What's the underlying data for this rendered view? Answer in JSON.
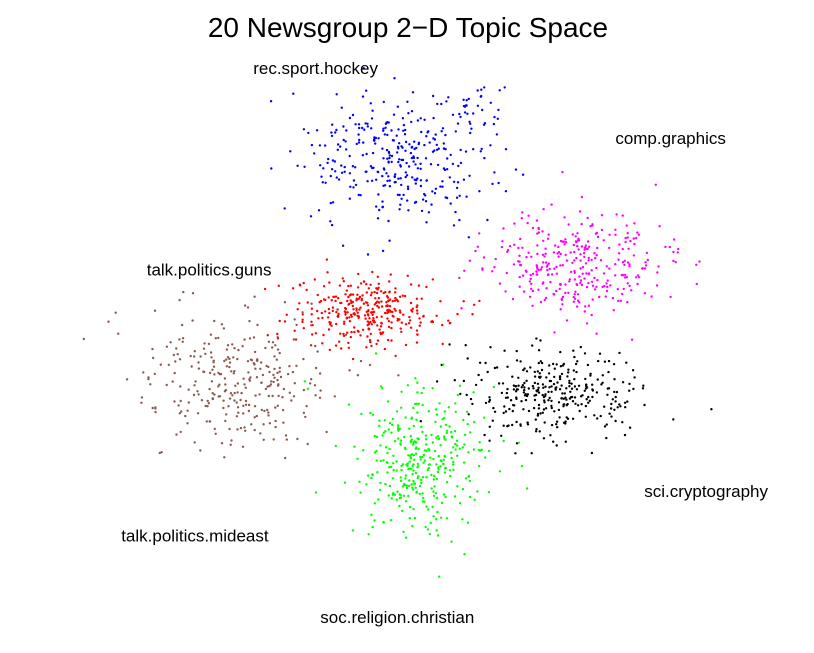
{
  "chart_data": {
    "type": "scatter",
    "title": "20 Newsgroup 2−D Topic Space",
    "xlabel": "",
    "ylabel": "",
    "axes_visible": false,
    "grid": false,
    "legend": "none",
    "point_counts_note": "",
    "series": [
      {
        "name": "rec.sport.hockey",
        "color": "#0000ff",
        "label_anchor": [
          -0.28,
          0.95
        ],
        "clusters": [
          {
            "center": [
              -0.05,
              0.64
            ],
            "spread": [
              0.22,
              0.19
            ],
            "n": 340
          },
          {
            "center": [
              0.18,
              0.86
            ],
            "spread": [
              0.06,
              0.06
            ],
            "n": 18
          }
        ]
      },
      {
        "name": "comp.graphics",
        "color": "#ff00ff",
        "label_anchor": [
          0.72,
          0.7
        ],
        "clusters": [
          {
            "center": [
              0.47,
              0.27
            ],
            "spread": [
              0.22,
              0.14
            ],
            "n": 330
          }
        ]
      },
      {
        "name": "talk.politics.guns",
        "color": "#ff0000",
        "label_anchor": [
          -0.58,
          0.23
        ],
        "clusters": [
          {
            "center": [
              -0.14,
              0.1
            ],
            "spread": [
              0.17,
              0.11
            ],
            "n": 330
          }
        ]
      },
      {
        "name": "talk.politics.mideast",
        "color": "#8b5a4f",
        "label_anchor": [
          -0.62,
          -0.72
        ],
        "clusters": [
          {
            "center": [
              -0.52,
              -0.15
            ],
            "spread": [
              0.22,
              0.2
            ],
            "n": 300
          }
        ]
      },
      {
        "name": "sci.cryptography",
        "color": "#000000",
        "label_anchor": [
          0.82,
          -0.56
        ],
        "clusters": [
          {
            "center": [
              0.38,
              -0.19
            ],
            "spread": [
              0.2,
              0.13
            ],
            "n": 320
          }
        ]
      },
      {
        "name": "soc.religion.christian",
        "color": "#00ff00",
        "label_anchor": [
          -0.05,
          -1.01
        ],
        "clusters": [
          {
            "center": [
              0.02,
              -0.44
            ],
            "spread": [
              0.15,
              0.21
            ],
            "n": 360
          }
        ]
      }
    ],
    "xlim": [
      -1.0,
      1.0
    ],
    "ylim": [
      -1.0,
      1.0
    ]
  }
}
